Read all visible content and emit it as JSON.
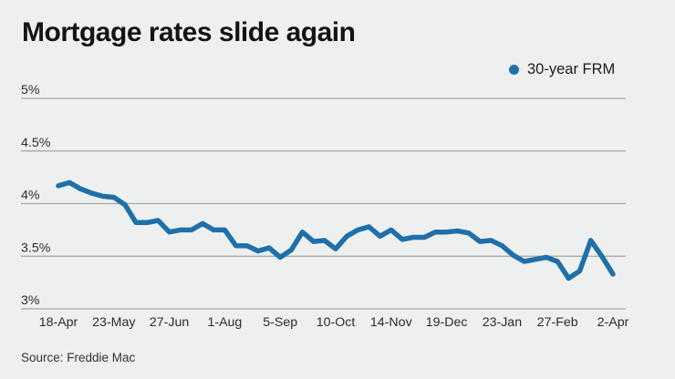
{
  "colors": {
    "background": "#eef0ef",
    "line": "#1f70aa",
    "gridline": "#a3a6a5",
    "title_text": "#141414",
    "axis_text": "#2b2b2b",
    "source_text": "#333333"
  },
  "chart_data": {
    "type": "line",
    "title": "Mortgage rates slide again",
    "source": "Source: Freddie Mac",
    "xlabel": "",
    "ylabel": "",
    "ylim": [
      3,
      5
    ],
    "grid": "horizontal",
    "legend_position": "top-right",
    "y_tick_labels": [
      "3%",
      "3.5%",
      "4%",
      "4.5%",
      "5%"
    ],
    "y_tick_values": [
      3,
      3.5,
      4,
      4.5,
      5
    ],
    "x_tick_labels": [
      "18-Apr",
      "23-May",
      "27-Jun",
      "1-Aug",
      "5-Sep",
      "10-Oct",
      "14-Nov",
      "19-Dec",
      "23-Jan",
      "27-Feb",
      "2-Apr"
    ],
    "x_tick_indices": [
      0,
      5,
      10,
      15,
      20,
      25,
      30,
      35,
      40,
      45,
      50
    ],
    "series": [
      {
        "name": "30-year FRM",
        "marker": "dot",
        "values": [
          4.17,
          4.2,
          4.14,
          4.1,
          4.07,
          4.06,
          3.99,
          3.82,
          3.82,
          3.84,
          3.73,
          3.75,
          3.75,
          3.81,
          3.75,
          3.75,
          3.6,
          3.6,
          3.55,
          3.58,
          3.49,
          3.56,
          3.73,
          3.64,
          3.65,
          3.57,
          3.69,
          3.75,
          3.78,
          3.69,
          3.75,
          3.66,
          3.68,
          3.68,
          3.73,
          3.73,
          3.74,
          3.72,
          3.64,
          3.65,
          3.6,
          3.51,
          3.45,
          3.47,
          3.49,
          3.45,
          3.29,
          3.36,
          3.65,
          3.5,
          3.33
        ]
      }
    ]
  }
}
